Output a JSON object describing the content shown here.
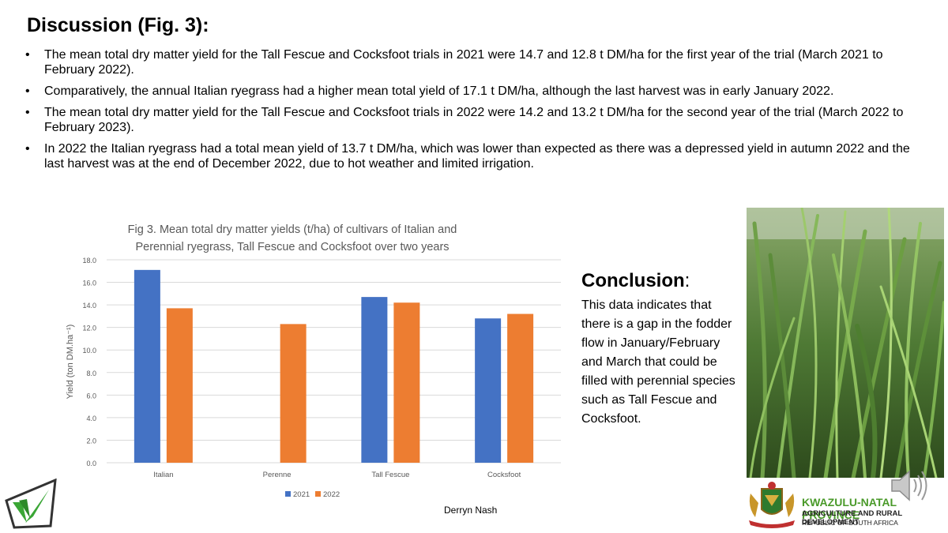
{
  "slide": {
    "title": "Discussion (Fig. 3):",
    "bullets": [
      "The mean total dry matter yield for the Tall Fescue and Cocksfoot trials in 2021 were 14.7 and 12.8 t DM/ha for the first year of the trial (March 2021 to February 2022).",
      "Comparatively, the annual Italian ryegrass had a higher mean total yield of 17.1 t DM/ha, although the last harvest was in early January 2022.",
      "The mean total dry matter yield for the Tall Fescue and Cocksfoot trials in 2022 were 14.2 and 13.2 t DM/ha for the second year of the trial (March 2022 to February 2023).",
      "In 2022 the Italian ryegrass had a total mean yield of 13.7 t DM/ha, which was lower than expected as there was a depressed yield in autumn 2022 and the last harvest was at the end of December 2022, due to hot weather and limited irrigation."
    ],
    "bullet_symbol": "•",
    "conclusion_heading": "Conclusion",
    "conclusion_colon": ":",
    "conclusion_text": "This data indicates that there is a gap in the fodder flow in January/February and March that could be filled with perennial species such as Tall Fescue and Cocksfoot.",
    "author": "Derryn Nash",
    "org_name": "KWAZULU-NATAL PROVINCE",
    "org_dept": "AGRICULTURE AND RURAL DEVELOPMENT",
    "org_country": "REPUBLIC OF SOUTH AFRICA",
    "icons": [
      "logo-icon",
      "crest-icon",
      "speaker-icon",
      "grass-photo"
    ]
  },
  "chart_data": {
    "type": "bar",
    "title_lines": [
      "Fig 3. Mean total dry matter yields (t/ha) of cultivars of Italian and",
      "Perennial ryegrass, Tall Fescue and Cocksfoot over two years"
    ],
    "categories": [
      "Italian",
      "Perenne",
      "Tall Fescue",
      "Cocksfoot"
    ],
    "series": [
      {
        "name": "2021",
        "color": "#4472c4",
        "values": [
          17.1,
          null,
          14.7,
          12.8
        ]
      },
      {
        "name": "2022",
        "color": "#ed7d31",
        "values": [
          13.7,
          12.3,
          14.2,
          13.2
        ]
      }
    ],
    "ylabel": "Yield (ton DM.ha⁻¹)",
    "ylim": [
      0,
      18
    ],
    "yticks": [
      "0.0",
      "2.0",
      "4.0",
      "6.0",
      "8.0",
      "10.0",
      "12.0",
      "14.0",
      "16.0",
      "18.0"
    ],
    "grid": true,
    "legend": "bottom"
  }
}
